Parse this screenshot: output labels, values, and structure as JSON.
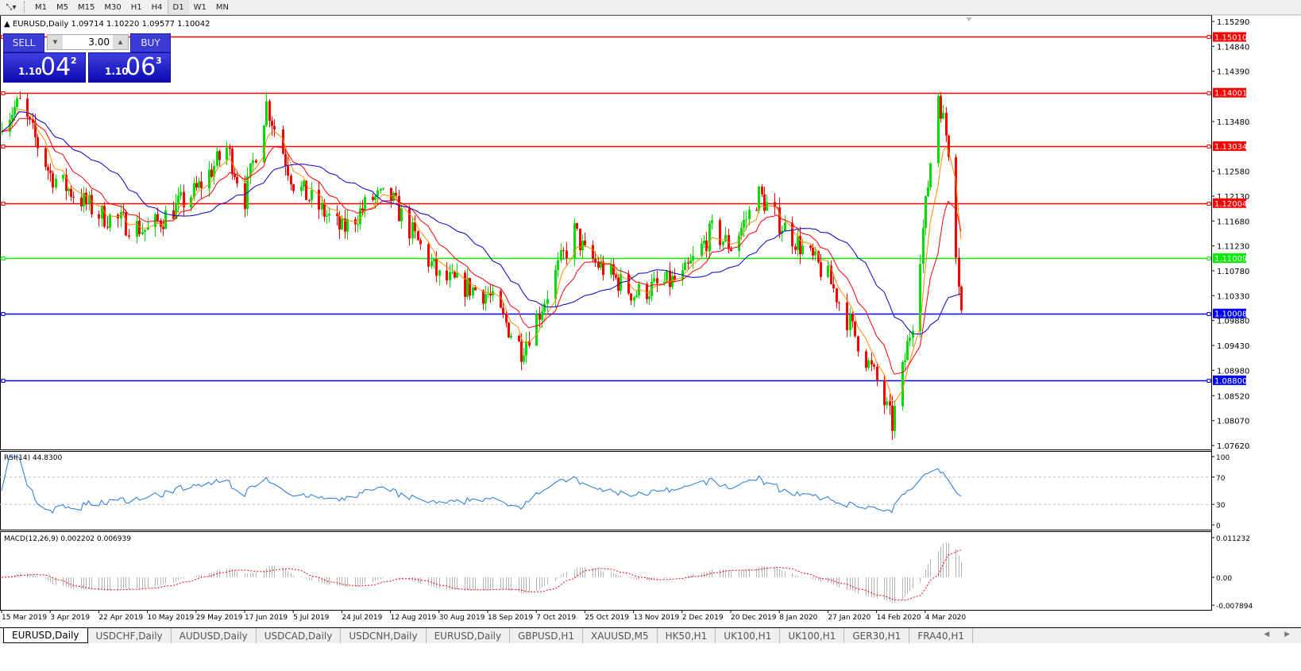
{
  "toolbar": {
    "tool_icon": "line-tool-icon",
    "timeframes": [
      "M1",
      "M5",
      "M15",
      "M30",
      "H1",
      "H4",
      "D1",
      "W1",
      "MN"
    ],
    "active": "D1"
  },
  "chart_title": {
    "symbol": "EURUSD,Daily",
    "ohlc": "1.09714 1.10220 1.09577 1.10042"
  },
  "trade_panel": {
    "sell_label": "SELL",
    "buy_label": "BUY",
    "lots": "3.00",
    "sell_prefix": "1.10",
    "sell_big": "04",
    "sell_pip": "2",
    "buy_prefix": "1.10",
    "buy_big": "06",
    "buy_pip": "3"
  },
  "indicators": {
    "rsi_label": "RSI(14) 44.8300",
    "macd_label": "MACD(12,26,9) 0.002202 0.006939"
  },
  "tabs": [
    "EURUSD,Daily",
    "USDCHF,Daily",
    "AUDUSD,Daily",
    "USDCAD,Daily",
    "USDCNH,Daily",
    "EURUSD,Daily",
    "GBPUSD,H1",
    "XAUUSD,M5",
    "HK50,H1",
    "UK100,H1",
    "UK100,H1",
    "GER30,H1",
    "FRA40,H1"
  ],
  "active_tab": 0,
  "tab_nav": "◀ ▶",
  "chart_data": {
    "type": "candlestick",
    "symbol": "EURUSD",
    "timeframe": "Daily",
    "ylim": [
      1.0762,
      1.1529
    ],
    "price_ticks": [
      "1.15290",
      "1.14840",
      "1.14390",
      "1.13480",
      "1.12580",
      "1.12130",
      "1.11680",
      "1.11230",
      "1.10780",
      "1.10330",
      "1.09880",
      "1.09430",
      "1.08980",
      "1.08520",
      "1.08070",
      "1.07620"
    ],
    "date_ticks": [
      "15 Mar 2019",
      "3 Apr 2019",
      "22 Apr 2019",
      "10 May 2019",
      "29 May 2019",
      "17 Jun 2019",
      "5 Jul 2019",
      "24 Jul 2019",
      "12 Aug 2019",
      "30 Aug 2019",
      "18 Sep 2019",
      "7 Oct 2019",
      "25 Oct 2019",
      "13 Nov 2019",
      "2 Dec 2019",
      "20 Dec 2019",
      "8 Jan 2020",
      "27 Jan 2020",
      "14 Feb 2020",
      "4 Mar 2020"
    ],
    "close_keypoints": [
      [
        "2019-03-15",
        1.1352
      ],
      [
        "2019-03-22",
        1.138
      ],
      [
        "2019-04-03",
        1.1252
      ],
      [
        "2019-04-22",
        1.118
      ],
      [
        "2019-05-10",
        1.1151
      ],
      [
        "2019-05-29",
        1.1223
      ],
      [
        "2019-06-10",
        1.13
      ],
      [
        "2019-06-17",
        1.1209
      ],
      [
        "2019-06-25",
        1.138
      ],
      [
        "2019-07-05",
        1.1237
      ],
      [
        "2019-07-24",
        1.1151
      ],
      [
        "2019-08-05",
        1.1209
      ],
      [
        "2019-08-12",
        1.1209
      ],
      [
        "2019-08-30",
        1.1065
      ],
      [
        "2019-09-18",
        1.1036
      ],
      [
        "2019-10-01",
        1.0936
      ],
      [
        "2019-10-07",
        1.0993
      ],
      [
        "2019-10-21",
        1.115
      ],
      [
        "2019-10-25",
        1.1108
      ],
      [
        "2019-11-13",
        1.1036
      ],
      [
        "2019-12-02",
        1.1065
      ],
      [
        "2019-12-13",
        1.115
      ],
      [
        "2019-12-20",
        1.1122
      ],
      [
        "2019-12-31",
        1.1215
      ],
      [
        "2020-01-08",
        1.1166
      ],
      [
        "2020-01-27",
        1.1065
      ],
      [
        "2020-02-14",
        1.0878
      ],
      [
        "2020-02-20",
        1.08
      ],
      [
        "2020-02-28",
        1.099
      ],
      [
        "2020-03-04",
        1.1194
      ],
      [
        "2020-03-09",
        1.14
      ],
      [
        "2020-03-13",
        1.13
      ],
      [
        "2020-03-18",
        1.1004
      ]
    ],
    "last_bar": {
      "open": 1.09714,
      "high": 1.1022,
      "low": 1.09577,
      "close": 1.10042
    },
    "horizontal_lines": [
      {
        "price": "1.15010",
        "color": "#ff0000"
      },
      {
        "price": "1.14001",
        "color": "#ff0000"
      },
      {
        "price": "1.13034",
        "color": "#ff0000"
      },
      {
        "price": "1.12004",
        "color": "#ff0000"
      },
      {
        "price": "1.11009",
        "color": "#00ee00"
      },
      {
        "price": "1.10008",
        "color": "#0000ff"
      },
      {
        "price": "1.08800",
        "color": "#0000ff"
      }
    ],
    "moving_averages": [
      {
        "color": "#ff8c00"
      },
      {
        "color": "#ff0000"
      },
      {
        "color": "#0000cc"
      }
    ],
    "rsi": {
      "period": 14,
      "levels": [
        70,
        30
      ],
      "ticks": [
        "100",
        "70",
        "30",
        "0"
      ],
      "color": "#1e78dc"
    },
    "macd": {
      "ticks": [
        "0.011232",
        "0.00",
        "-0.007894"
      ],
      "ylim": [
        -0.007894,
        0.011232
      ],
      "histogram_color": "#b4b4b4",
      "signal_color": "#ff0000"
    },
    "bull_color": "#00dd00",
    "bear_color": "#ff0000"
  }
}
